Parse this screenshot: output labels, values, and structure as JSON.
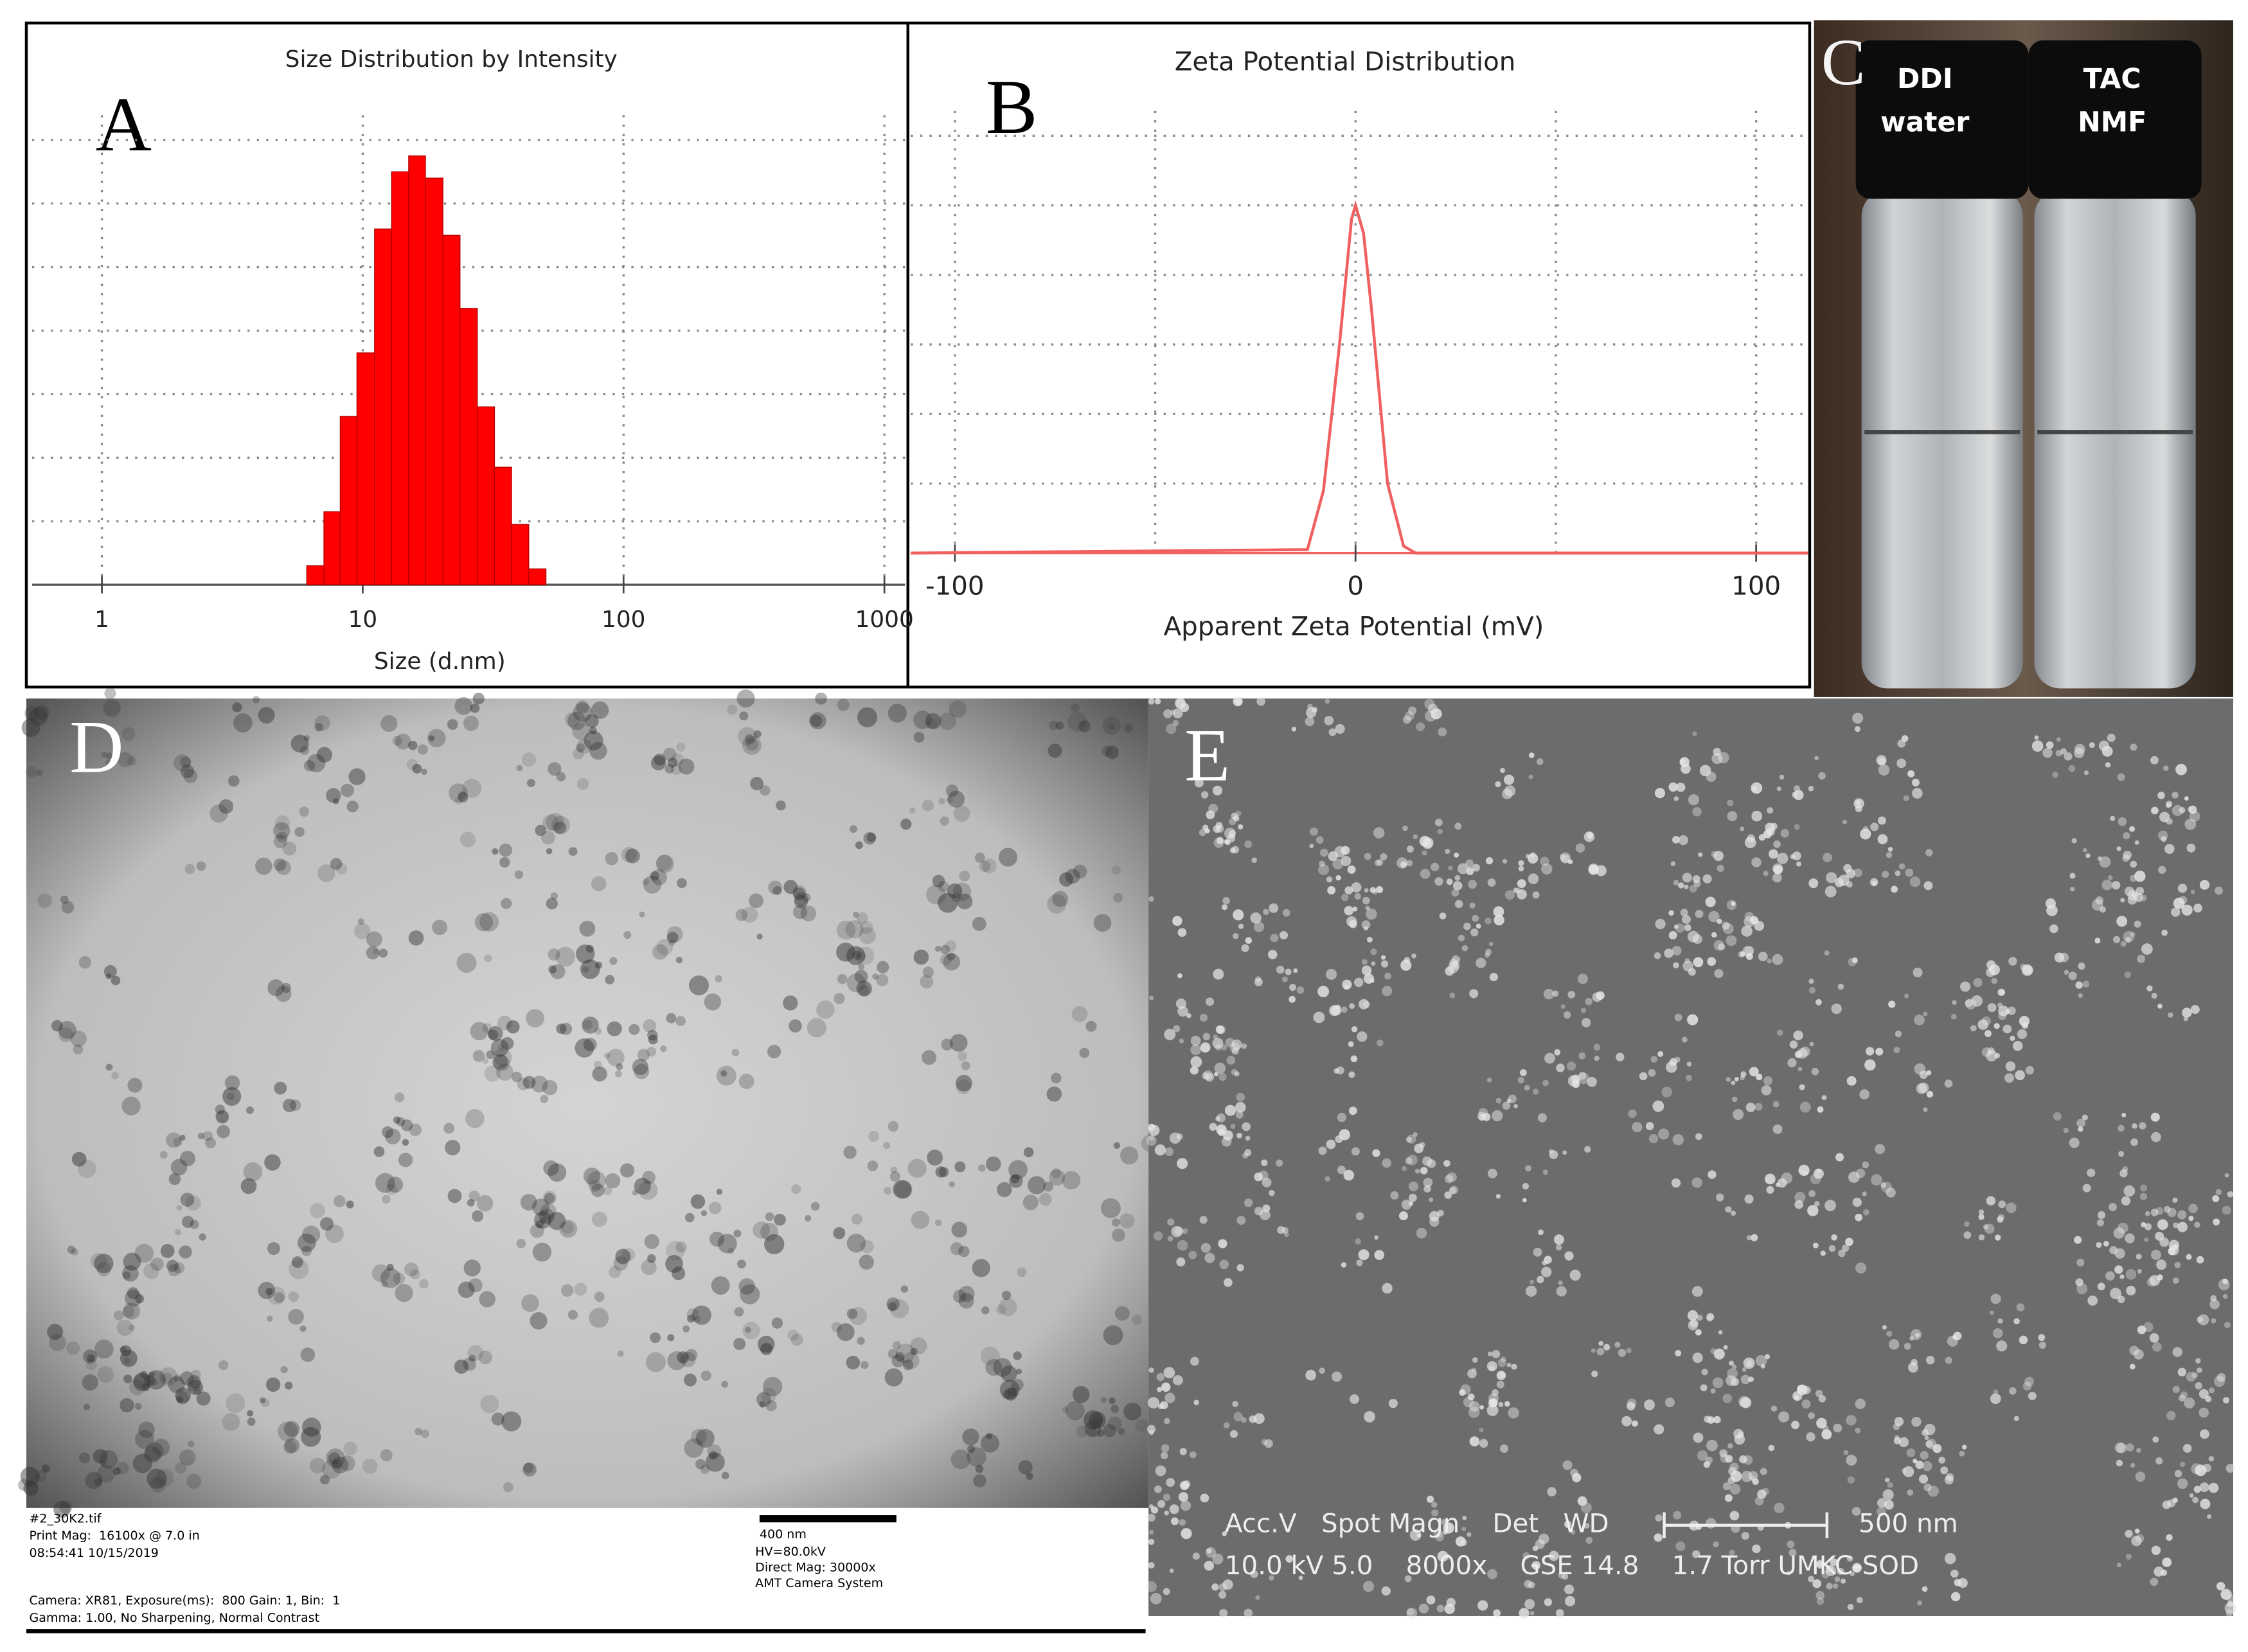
{
  "chart_data": [
    {
      "type": "histogram",
      "panel_label": "A",
      "title": "Size Distribution by Intensity",
      "x_label": "Size (d.nm)",
      "log_x": true,
      "color": "#ff0000",
      "grid": true,
      "bins": [
        6.1,
        7.1,
        8.2,
        9.5,
        11.1,
        12.9,
        15.0,
        17.4,
        20.3,
        23.6,
        27.5,
        32.0,
        37.2,
        43.3,
        50.4
      ],
      "values": [
        0.6,
        2.3,
        5.3,
        7.3,
        11.2,
        13.0,
        13.5,
        12.8,
        11.0,
        8.7,
        5.6,
        3.7,
        1.9,
        0.5
      ],
      "xlim": [
        0.54,
        1200
      ],
      "xticks": [
        1,
        10,
        100,
        1000
      ],
      "ylim": [
        0,
        17.5
      ],
      "ygrid": [
        2,
        4,
        6,
        8,
        10,
        12,
        14
      ]
    },
    {
      "type": "line",
      "panel_label": "B",
      "title": "Zeta Potential Distribution",
      "x_label": "Apparent Zeta Potential (mV)",
      "color": "#f06060",
      "grid": true,
      "x": [
        -111,
        -12,
        -8,
        -4,
        -1,
        0,
        2,
        4,
        8,
        12,
        15,
        113
      ],
      "values": [
        0,
        0.05,
        0.9,
        3.0,
        4.8,
        5.0,
        4.6,
        3.5,
        1.0,
        0.1,
        0,
        0
      ],
      "xlim": [
        -111,
        113
      ],
      "xticks": [
        -100,
        0,
        100
      ],
      "xgrid": [
        -100,
        -50,
        0,
        50,
        100
      ],
      "ylim": [
        0,
        7.6
      ],
      "ygrid": [
        1,
        2,
        3,
        4,
        5,
        6
      ]
    }
  ],
  "photos": {
    "C": {
      "label": "C",
      "vials": [
        [
          "DDI",
          "water"
        ],
        [
          "TAC",
          "NMF"
        ]
      ]
    },
    "D": {
      "label": "D",
      "file": "#2_30K2.tif",
      "print_mag": "Print Mag:  16100x @ 7.0 in",
      "timestamp": "08:54:41 10/15/2019",
      "scale": "400 nm",
      "hv": "HV=80.0kV",
      "direct_mag": "Direct Mag: 30000x",
      "system": "AMT Camera System",
      "camera": "Camera: XR81, Exposure(ms):  800 Gain: 1, Bin:  1",
      "gamma": "Gamma: 1.00, No Sharpening, Normal Contrast"
    },
    "E": {
      "label": "E",
      "header": "Acc.V   Spot Magn    Det   WD",
      "settings": "10.0 kV 5.0    8000x    GSE 14.8    1.7 Torr UMKC-SOD",
      "scale": "500 nm"
    }
  }
}
